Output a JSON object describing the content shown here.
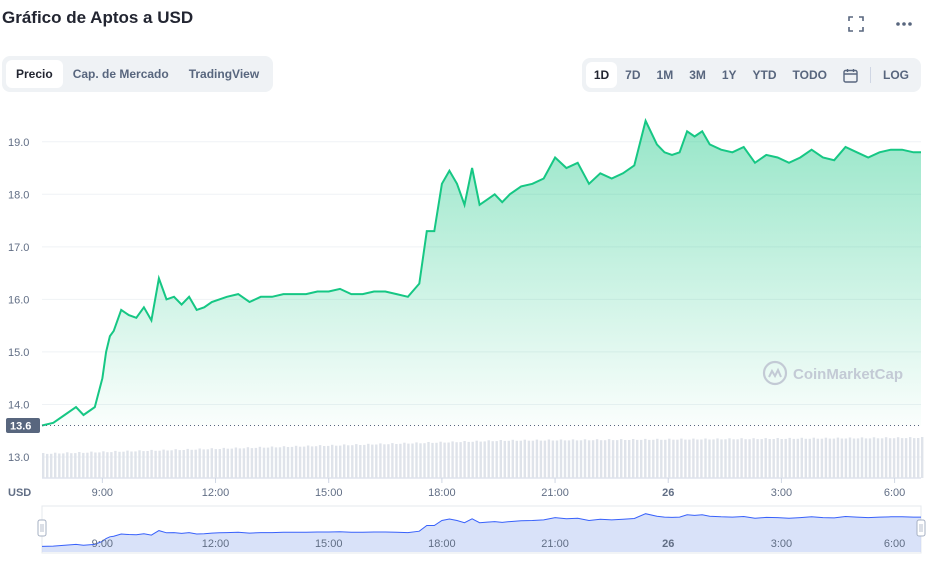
{
  "title": "Gráfico de Aptos a USD",
  "tabs": [
    {
      "label": "Precio",
      "active": true
    },
    {
      "label": "Cap. de Mercado",
      "active": false
    },
    {
      "label": "TradingView",
      "active": false
    }
  ],
  "ranges": [
    {
      "label": "1D",
      "active": true
    },
    {
      "label": "7D",
      "active": false
    },
    {
      "label": "1M",
      "active": false
    },
    {
      "label": "3M",
      "active": false
    },
    {
      "label": "1Y",
      "active": false
    },
    {
      "label": "YTD",
      "active": false
    },
    {
      "label": "TODO",
      "active": false
    }
  ],
  "log_label": "LOG",
  "icons": {
    "fullscreen": "fullscreen-icon",
    "more": "more-dots-icon",
    "calendar": "calendar-icon"
  },
  "watermark": "CoinMarketCap",
  "colors": {
    "line": "#16c784",
    "navigator_line": "#3861fb",
    "current_price_bg": "#58667e"
  },
  "chart_data": {
    "type": "line",
    "currency_label": "USD",
    "current_price_label": "13.6",
    "current_price": 13.6,
    "y_ticks": [
      13.0,
      14.0,
      15.0,
      16.0,
      17.0,
      18.0,
      19.0
    ],
    "ylim": [
      12.6,
      19.7
    ],
    "x_ticks": [
      "9:00",
      "12:00",
      "15:00",
      "18:00",
      "21:00",
      "26",
      "3:00",
      "6:00"
    ],
    "x_tick_hours": [
      9,
      12,
      15,
      18,
      21,
      24,
      27,
      30
    ],
    "xlim": [
      7.4,
      30.7
    ],
    "series": [
      {
        "x": [
          7.4,
          7.7,
          8.0,
          8.3,
          8.5,
          8.8,
          9.0,
          9.1,
          9.2,
          9.3,
          9.5,
          9.7,
          9.9,
          10.1,
          10.3,
          10.5,
          10.7,
          10.9,
          11.1,
          11.3,
          11.5,
          11.7,
          11.9,
          12.1,
          12.3,
          12.6,
          12.9,
          13.2,
          13.5,
          13.8,
          14.1,
          14.4,
          14.7,
          15.0,
          15.3,
          15.6,
          15.9,
          16.2,
          16.5,
          16.8,
          17.1,
          17.4,
          17.6,
          17.8,
          18.0,
          18.2,
          18.4,
          18.6,
          18.8,
          19.0,
          19.2,
          19.4,
          19.6,
          19.8,
          20.1,
          20.4,
          20.7,
          21.0,
          21.3,
          21.6,
          21.9,
          22.2,
          22.5,
          22.8,
          23.1,
          23.4,
          23.7,
          23.9,
          24.1,
          24.3,
          24.5,
          24.7,
          24.9,
          25.1,
          25.4,
          25.7,
          26.0,
          26.3,
          26.6,
          26.9,
          27.2,
          27.5,
          27.8,
          28.1,
          28.4,
          28.7,
          29.0,
          29.3,
          29.6,
          29.9,
          30.2,
          30.5,
          30.7
        ],
        "values": [
          13.6,
          13.65,
          13.8,
          13.95,
          13.8,
          13.95,
          14.5,
          15.0,
          15.3,
          15.4,
          15.8,
          15.7,
          15.65,
          15.85,
          15.6,
          16.4,
          16.0,
          16.05,
          15.9,
          16.05,
          15.8,
          15.85,
          15.95,
          16.0,
          16.05,
          16.1,
          15.95,
          16.05,
          16.05,
          16.1,
          16.1,
          16.1,
          16.15,
          16.15,
          16.2,
          16.1,
          16.1,
          16.15,
          16.15,
          16.1,
          16.05,
          16.3,
          17.3,
          17.3,
          18.2,
          18.45,
          18.2,
          17.8,
          18.5,
          17.8,
          17.9,
          18.0,
          17.85,
          18.0,
          18.15,
          18.2,
          18.3,
          18.7,
          18.5,
          18.6,
          18.2,
          18.4,
          18.3,
          18.4,
          18.55,
          19.4,
          18.95,
          18.8,
          18.75,
          18.8,
          19.2,
          19.1,
          19.2,
          18.95,
          18.85,
          18.8,
          18.9,
          18.6,
          18.75,
          18.7,
          18.6,
          18.7,
          18.85,
          18.7,
          18.65,
          18.9,
          18.8,
          18.7,
          18.8,
          18.85,
          18.85,
          18.8,
          18.8
        ]
      }
    ],
    "volume_bars": "relative",
    "navigator_x_ticks": [
      "9:00",
      "12:00",
      "15:00",
      "18:00",
      "21:00",
      "26",
      "3:00",
      "6:00"
    ]
  }
}
